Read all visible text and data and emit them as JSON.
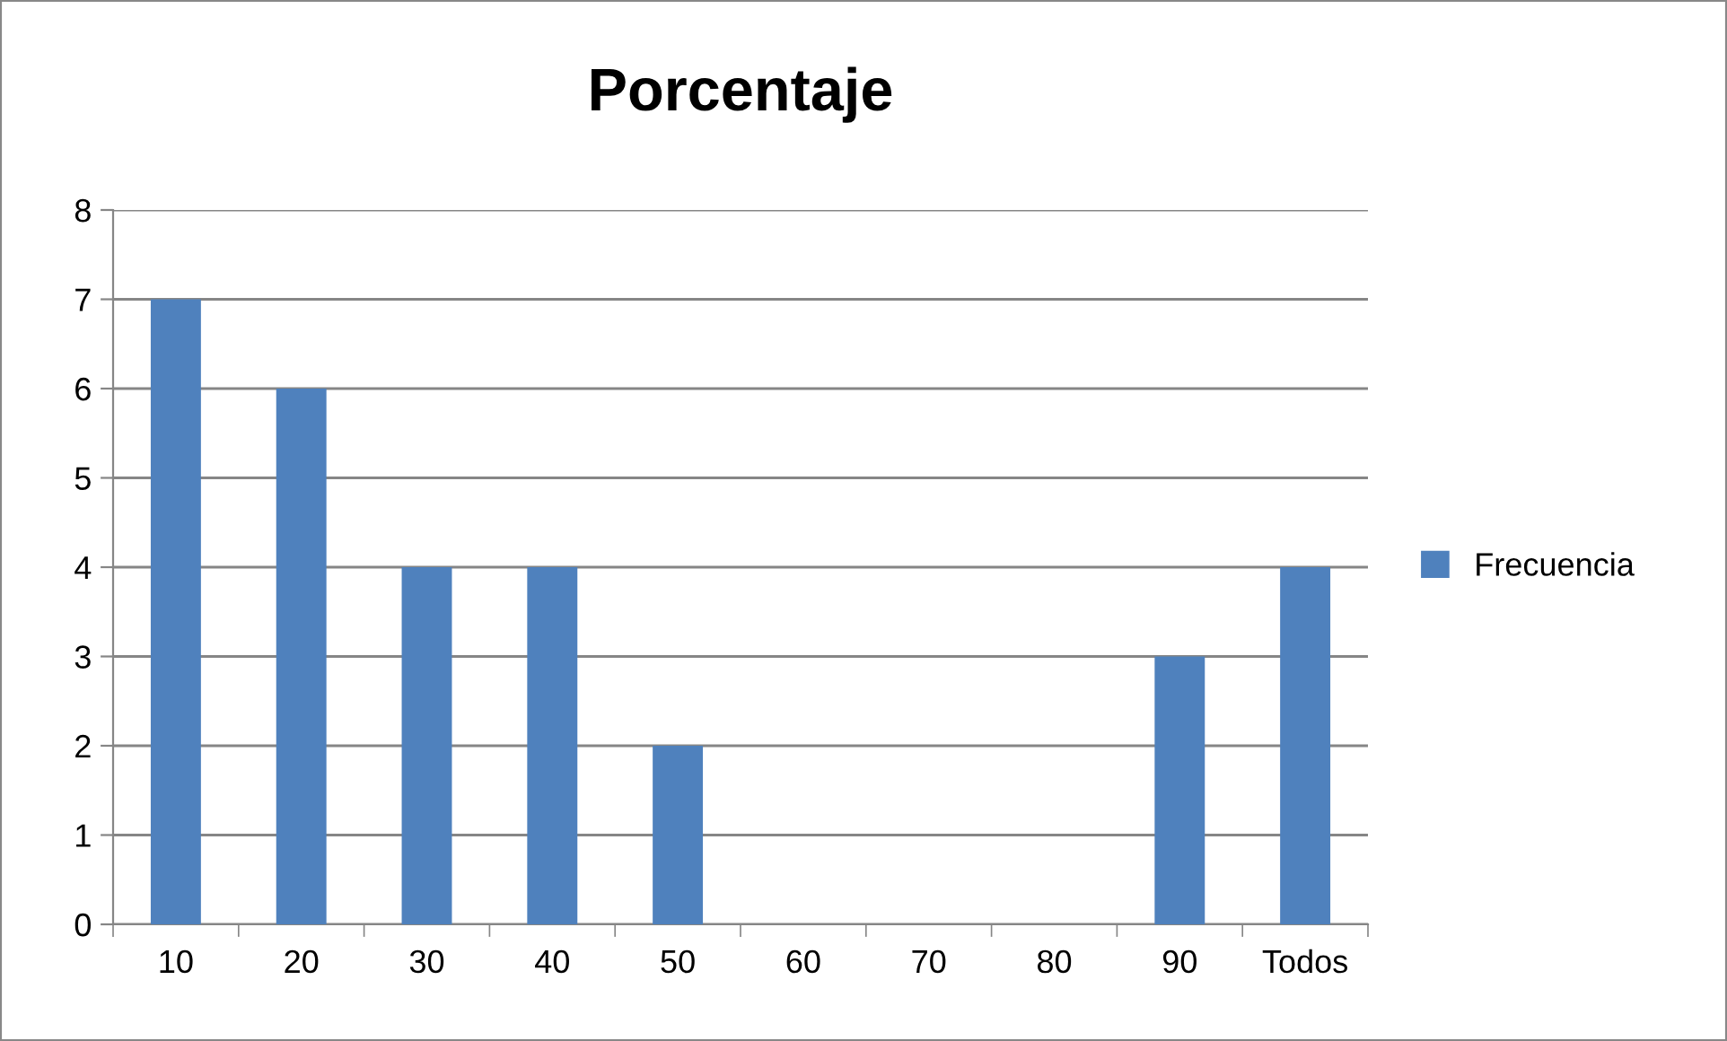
{
  "chart_data": {
    "type": "bar",
    "title": "Porcentaje",
    "categories": [
      "10",
      "20",
      "30",
      "40",
      "50",
      "60",
      "70",
      "80",
      "90",
      "Todos"
    ],
    "series": [
      {
        "name": "Frecuencia",
        "color": "#4f81bd",
        "values": [
          7,
          6,
          4,
          4,
          2,
          0,
          0,
          0,
          3,
          4
        ]
      }
    ],
    "ylim": [
      0,
      8
    ],
    "yticks": [
      0,
      1,
      2,
      3,
      4,
      5,
      6,
      7,
      8
    ],
    "grid": "y",
    "legend": "right"
  }
}
